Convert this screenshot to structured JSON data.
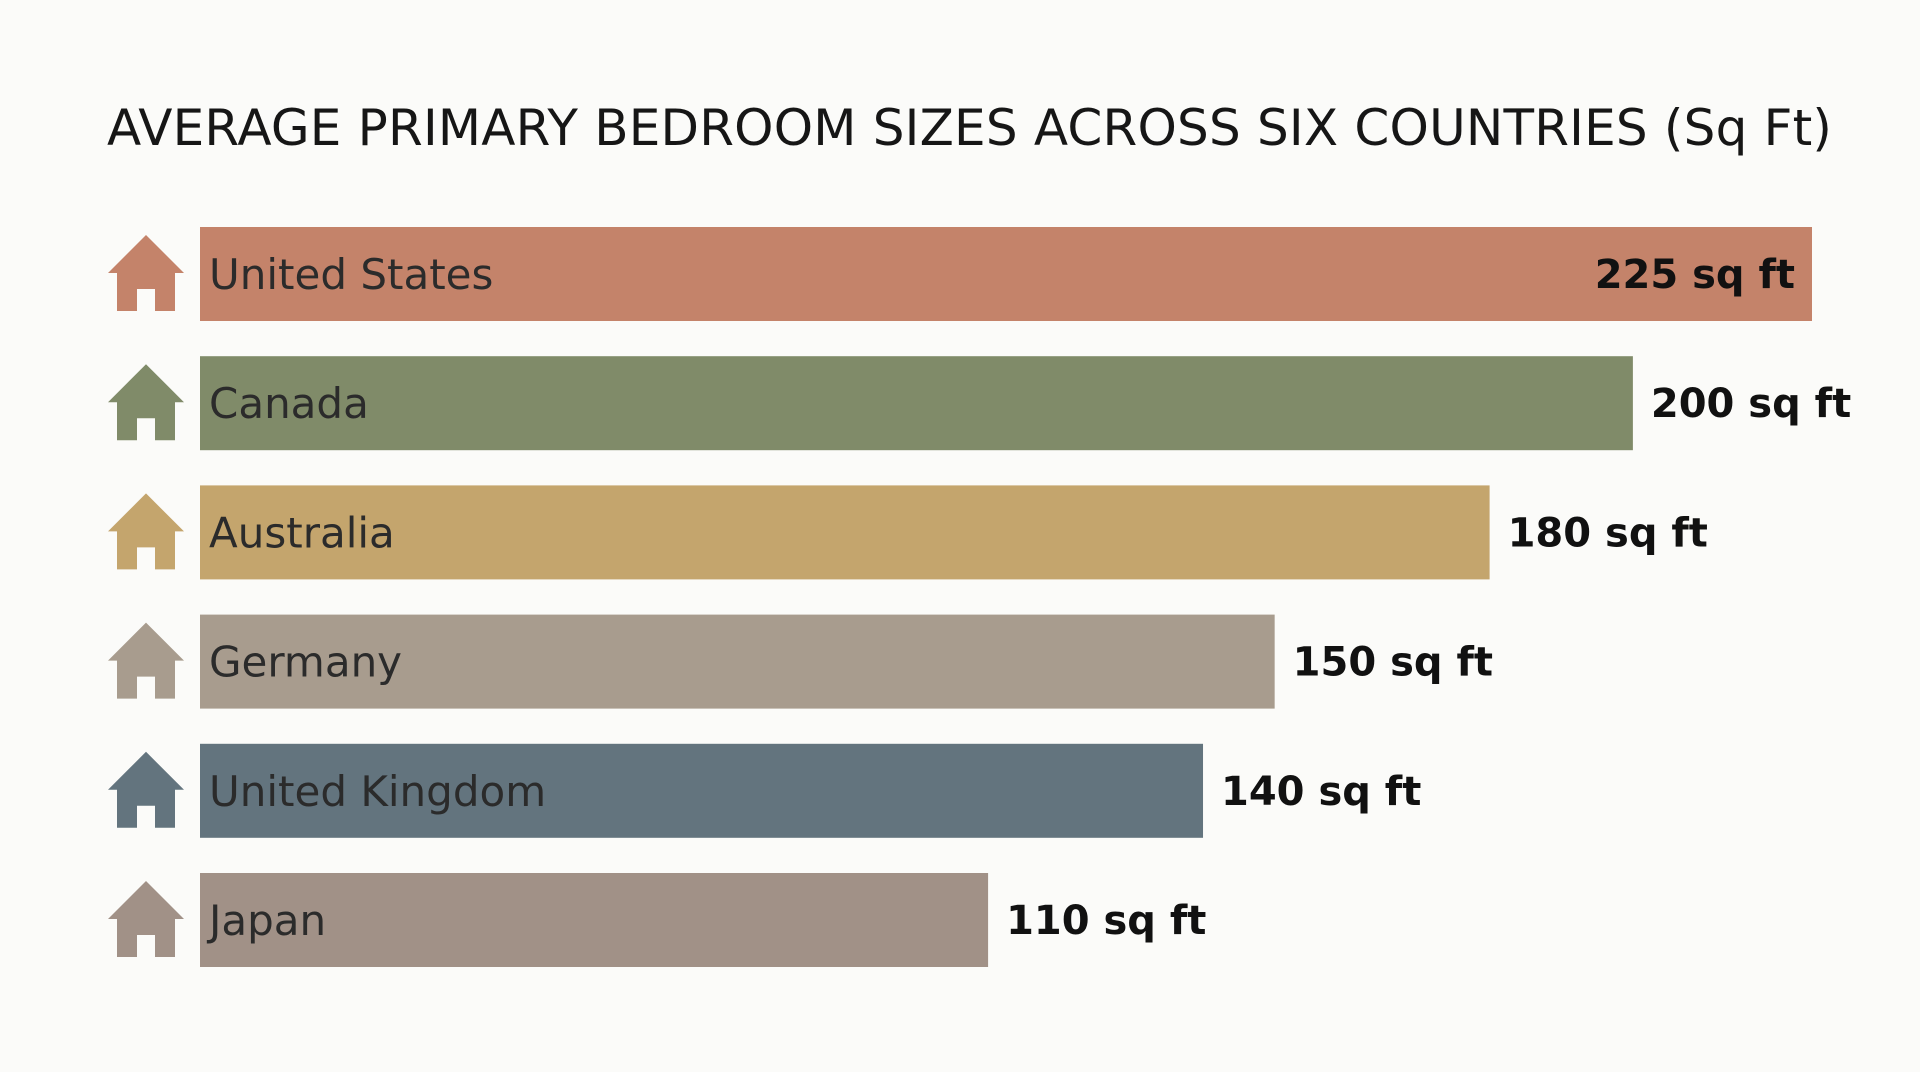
{
  "chart_data": {
    "type": "bar",
    "orientation": "horizontal",
    "title": "AVERAGE PRIMARY BEDROOM SIZES ACROSS SIX COUNTRIES (Sq Ft)",
    "categories": [
      "United States",
      "Canada",
      "Australia",
      "Germany",
      "United Kingdom",
      "Japan"
    ],
    "values": [
      225,
      200,
      180,
      150,
      140,
      110
    ],
    "value_labels": [
      "225 sq ft",
      "200 sq ft",
      "180 sq ft",
      "150 sq ft",
      "140 sq ft",
      "110 sq ft"
    ],
    "colors": [
      "#c4836a",
      "#808b69",
      "#c4a56d",
      "#a89c8e",
      "#63747e",
      "#a19187"
    ],
    "icon": "house-icon",
    "grid": false,
    "legend": "none",
    "xlim": [
      0,
      225
    ]
  }
}
